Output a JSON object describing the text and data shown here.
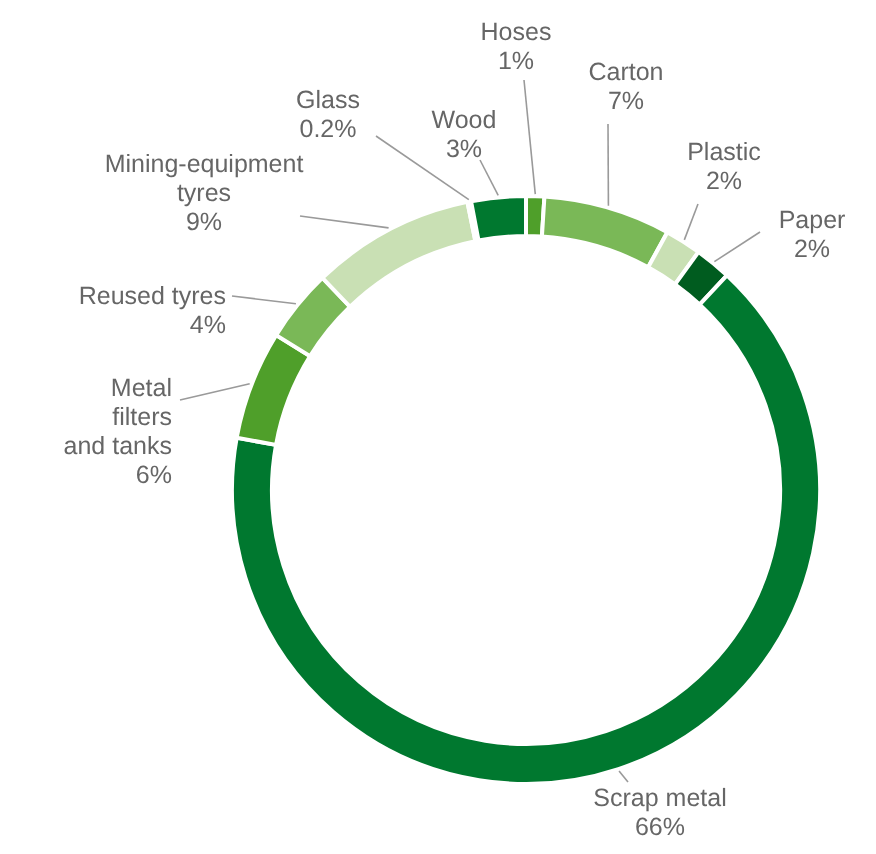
{
  "chart_data": {
    "type": "donut",
    "categories": [
      "Hoses",
      "Carton",
      "Plastic",
      "Paper",
      "Scrap metal",
      "Metal filters and tanks",
      "Reused tyres",
      "Mining-equipment tyres",
      "Glass",
      "Wood"
    ],
    "values": [
      1,
      7,
      2,
      2,
      66,
      6,
      4,
      9,
      0.2,
      3
    ],
    "value_labels": [
      "1%",
      "7%",
      "2%",
      "2%",
      "66%",
      "6%",
      "4%",
      "9%",
      "0.2%",
      "3%"
    ],
    "colors": [
      "#4f9f2a",
      "#7ab857",
      "#c9e0b4",
      "#005c1f",
      "#00782f",
      "#4f9f2a",
      "#7ab857",
      "#c9e0b4",
      "#c9e0b4",
      "#00782f"
    ]
  }
}
